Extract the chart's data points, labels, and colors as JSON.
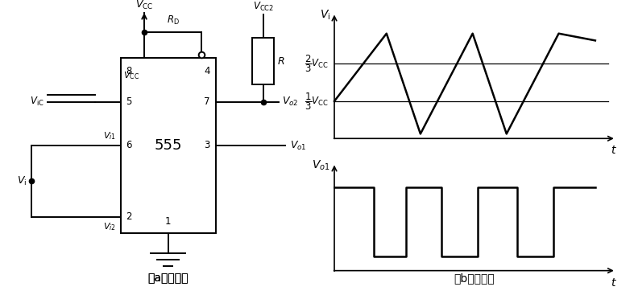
{
  "fig_width": 7.87,
  "fig_height": 3.62,
  "dpi": 100,
  "bg_color": "#ffffff",
  "line_color": "#000000",
  "caption_a": "（a）电路图",
  "caption_b": "（b）波形图",
  "chip_label": "555",
  "vcc_upper_label": "$V_{\\mathrm{CC}}$",
  "vcc_chip_label": "$V_{\\mathrm{CC}}$",
  "vcc2_label": "$V_{\\mathrm{CC2}}$",
  "rd_label": "$R_{\\mathrm{D}}$",
  "r_label": "$R$",
  "vo2_label": "$V_{o2}$",
  "vo1_label": "$V_{o1}$",
  "vic_label": "$V_{\\mathrm{iC}}$",
  "vi1_label": "$V_{i1}$",
  "vi2_label": "$V_{i2}$",
  "vi_label": "$V_{\\mathrm{i}}$",
  "two_thirds_label": "$\\dfrac{2}{3}V_{\\mathrm{CC}}$",
  "one_third_label": "$\\dfrac{1}{3}V_{\\mathrm{CC}}$",
  "vi_axis_label": "$V_{\\mathrm{i}}$",
  "vol_axis_label": "$V_{o1}$",
  "t_label1": "$t$",
  "t_label2": "$t$"
}
